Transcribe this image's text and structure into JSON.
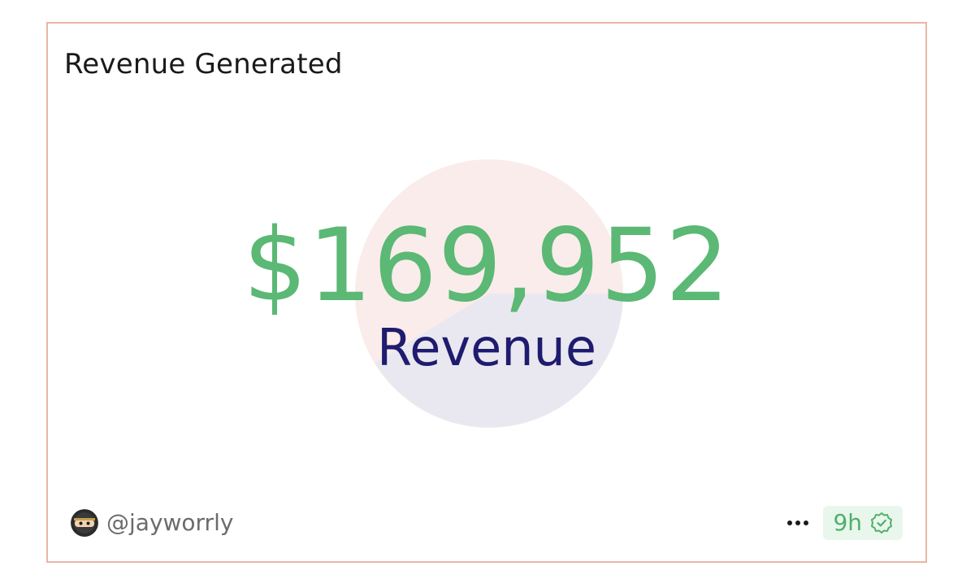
{
  "card": {
    "title": "Revenue Generated"
  },
  "metric": {
    "value": "$169,952",
    "label": "Revenue",
    "value_color": "#5bb875",
    "label_color": "#1f1b6e"
  },
  "background_pie": {
    "slices": [
      {
        "color": "#f9ecea",
        "fraction": 0.55
      },
      {
        "color": "#e9e8f0",
        "fraction": 0.45
      }
    ]
  },
  "footer": {
    "username": "@jayworrly",
    "time": "9h",
    "icons": {
      "avatar": "ninja-avatar",
      "more": "more-horizontal-icon",
      "verified": "verified-badge-icon"
    }
  },
  "colors": {
    "border": "#e9b6a4",
    "badge_bg": "#e9f6ec",
    "badge_text": "#4fb06a"
  }
}
